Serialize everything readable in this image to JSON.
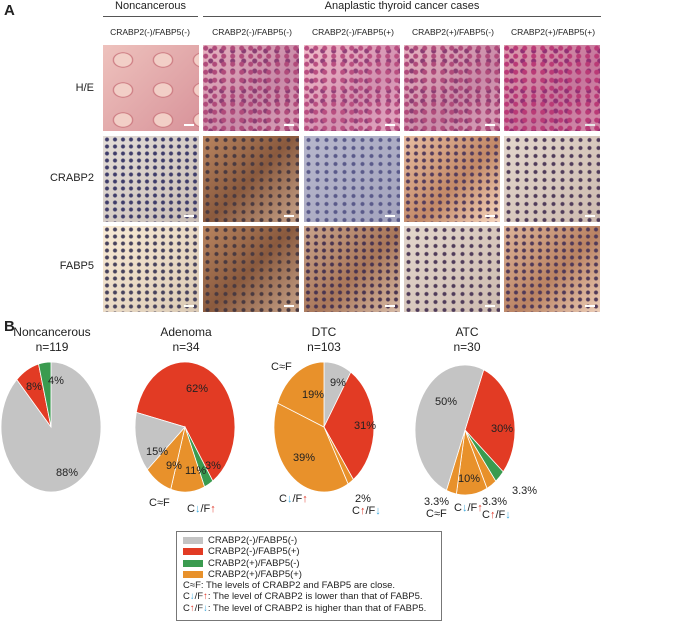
{
  "panel_a": {
    "label": "A",
    "group_noncancerous": "Noncancerous",
    "group_atc": "Anaplastic thyroid cancer cases",
    "columns": [
      "CRABP2(-)/FABP5(-)",
      "CRABP2(-)/FABP5(-)",
      "CRABP2(-)/FABP5(+)",
      "CRABP2(+)/FABP5(-)",
      "CRABP2(+)/FABP5(+)"
    ],
    "rows": [
      "H/E",
      "CRABP2",
      "FABP5"
    ]
  },
  "panel_b": {
    "label": "B"
  },
  "colors": {
    "gray": "#c4c4c4",
    "red": "#e23b24",
    "green": "#3a9b4f",
    "orange": "#e8912b"
  },
  "chart_data": {
    "type": "pie",
    "charts": [
      {
        "title": "Noncancerous",
        "n": "n=119",
        "start": 0,
        "slices": [
          {
            "cat": "CRABP2(-)/FABP5(-)",
            "value": 88,
            "label": "88%"
          },
          {
            "cat": "CRABP2(-)/FABP5(+)",
            "value": 8,
            "label": "8%"
          },
          {
            "cat": "CRABP2(+)/FABP5(-)",
            "value": 4,
            "label": "4%"
          }
        ]
      },
      {
        "title": "Adenoma",
        "n": "n=34",
        "start": -77,
        "slices": [
          {
            "cat": "CRABP2(-)/FABP5(+)",
            "value": 62,
            "label": "62%"
          },
          {
            "cat": "CRABP2(+)/FABP5(-)",
            "value": 3,
            "label": "3%"
          },
          {
            "cat": "CRABP2(+)/FABP5(+)",
            "value": 11,
            "label": "11%",
            "sub": "C↓/F↑"
          },
          {
            "cat": "CRABP2(+)/FABP5(+)",
            "value": 9,
            "label": "9%",
            "sub": "C≈F"
          },
          {
            "cat": "CRABP2(-)/FABP5(-)",
            "value": 15,
            "label": "15%"
          }
        ]
      },
      {
        "title": "DTC",
        "n": "n=103",
        "start": 0,
        "slices": [
          {
            "cat": "CRABP2(-)/FABP5(-)",
            "value": 9,
            "label": "9%"
          },
          {
            "cat": "CRABP2(-)/FABP5(+)",
            "value": 31,
            "label": "31%"
          },
          {
            "cat": "CRABP2(+)/FABP5(+)",
            "value": 2,
            "label": "2%",
            "sub": "C↑/F↓"
          },
          {
            "cat": "CRABP2(+)/FABP5(+)",
            "value": 39,
            "label": "39%",
            "sub": "C↓/F↑"
          },
          {
            "cat": "CRABP2(+)/FABP5(+)",
            "value": 19,
            "label": "19%",
            "sub": "C≈F"
          }
        ]
      },
      {
        "title": "ATC",
        "n": "n=30",
        "start": 22,
        "slices": [
          {
            "cat": "CRABP2(-)/FABP5(+)",
            "value": 30,
            "label": "30%"
          },
          {
            "cat": "CRABP2(+)/FABP5(-)",
            "value": 3.3,
            "label": "3.3%"
          },
          {
            "cat": "CRABP2(+)/FABP5(+)",
            "value": 3.3,
            "label": "3.3%",
            "sub": "C↑/F↓"
          },
          {
            "cat": "CRABP2(+)/FABP5(+)",
            "value": 10,
            "label": "10%",
            "sub": "C↓/F↑"
          },
          {
            "cat": "CRABP2(+)/FABP5(+)",
            "value": 3.3,
            "label": "3.3%",
            "sub": "C≈F"
          },
          {
            "cat": "CRABP2(-)/FABP5(-)",
            "value": 50,
            "label": "50%"
          }
        ]
      }
    ]
  },
  "legend": {
    "items": [
      "CRABP2(-)/FABP5(-)",
      "CRABP2(-)/FABP5(+)",
      "CRABP2(+)/FABP5(-)",
      "CRABP2(+)/FABP5(+)"
    ],
    "notes": [
      {
        "key": "C≈F",
        "text": ": The levels of CRABP2 and FABP5 are close."
      },
      {
        "c": "C",
        "a1": "↓",
        "f": "/F",
        "a2": "↑",
        "text": ": The level of CRABP2 is lower than that of FABP5."
      },
      {
        "c": "C",
        "a1": "↑",
        "f": "/F",
        "a2": "↓",
        "text": ": The level of CRABP2 is higher than that of FABP5."
      }
    ]
  },
  "sub_labels": {
    "ceqf": "C≈F",
    "c": "C",
    "f": "/F",
    "up": "↑",
    "down": "↓"
  }
}
